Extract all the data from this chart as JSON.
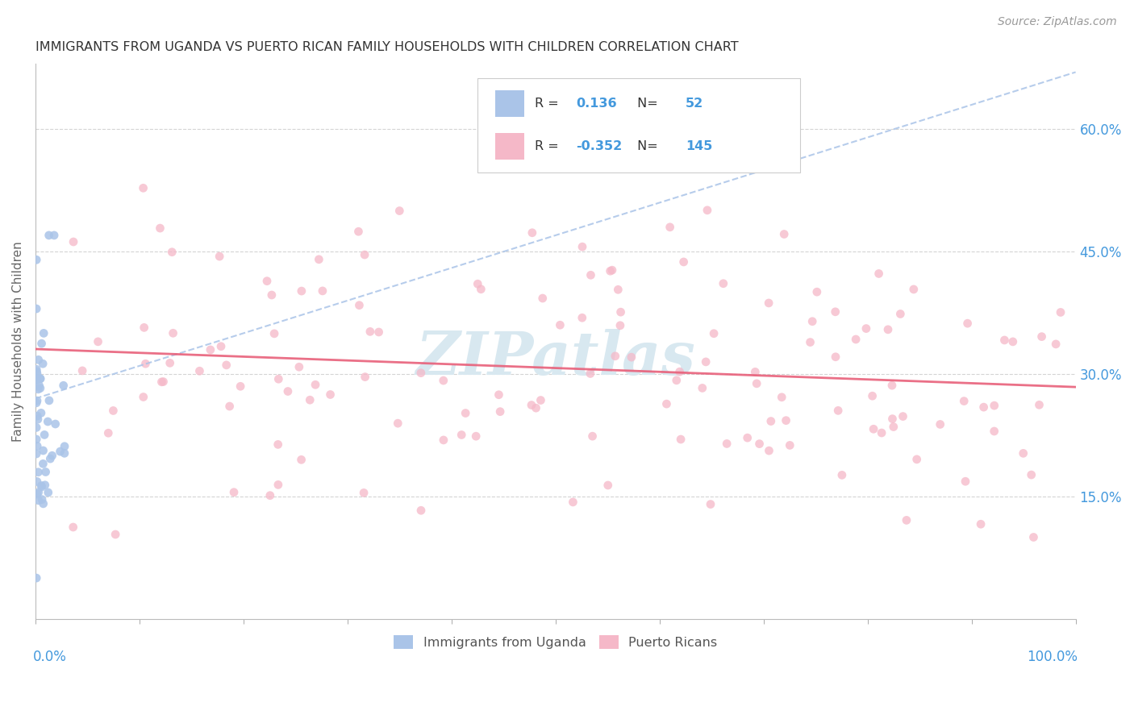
{
  "title": "IMMIGRANTS FROM UGANDA VS PUERTO RICAN FAMILY HOUSEHOLDS WITH CHILDREN CORRELATION CHART",
  "source": "Source: ZipAtlas.com",
  "ylabel": "Family Households with Children",
  "yticks": [
    "15.0%",
    "30.0%",
    "45.0%",
    "60.0%"
  ],
  "ytick_vals": [
    0.15,
    0.3,
    0.45,
    0.6
  ],
  "legend_blue_r": "0.136",
  "legend_blue_n": "52",
  "legend_pink_r": "-0.352",
  "legend_pink_n": "145",
  "legend_label_blue": "Immigrants from Uganda",
  "legend_label_pink": "Puerto Ricans",
  "bg_color": "#ffffff",
  "scatter_blue_color": "#aac4e8",
  "scatter_pink_color": "#f5b8c8",
  "line_blue_color": "#aac4e8",
  "line_pink_color": "#e8607a",
  "grid_color": "#d0d0d0",
  "title_color": "#333333",
  "axis_label_color": "#4499dd",
  "watermark_color": "#d8e8f0",
  "xlim": [
    0.0,
    1.0
  ],
  "ylim": [
    0.0,
    0.68
  ],
  "blue_seed": 42,
  "pink_seed": 99
}
